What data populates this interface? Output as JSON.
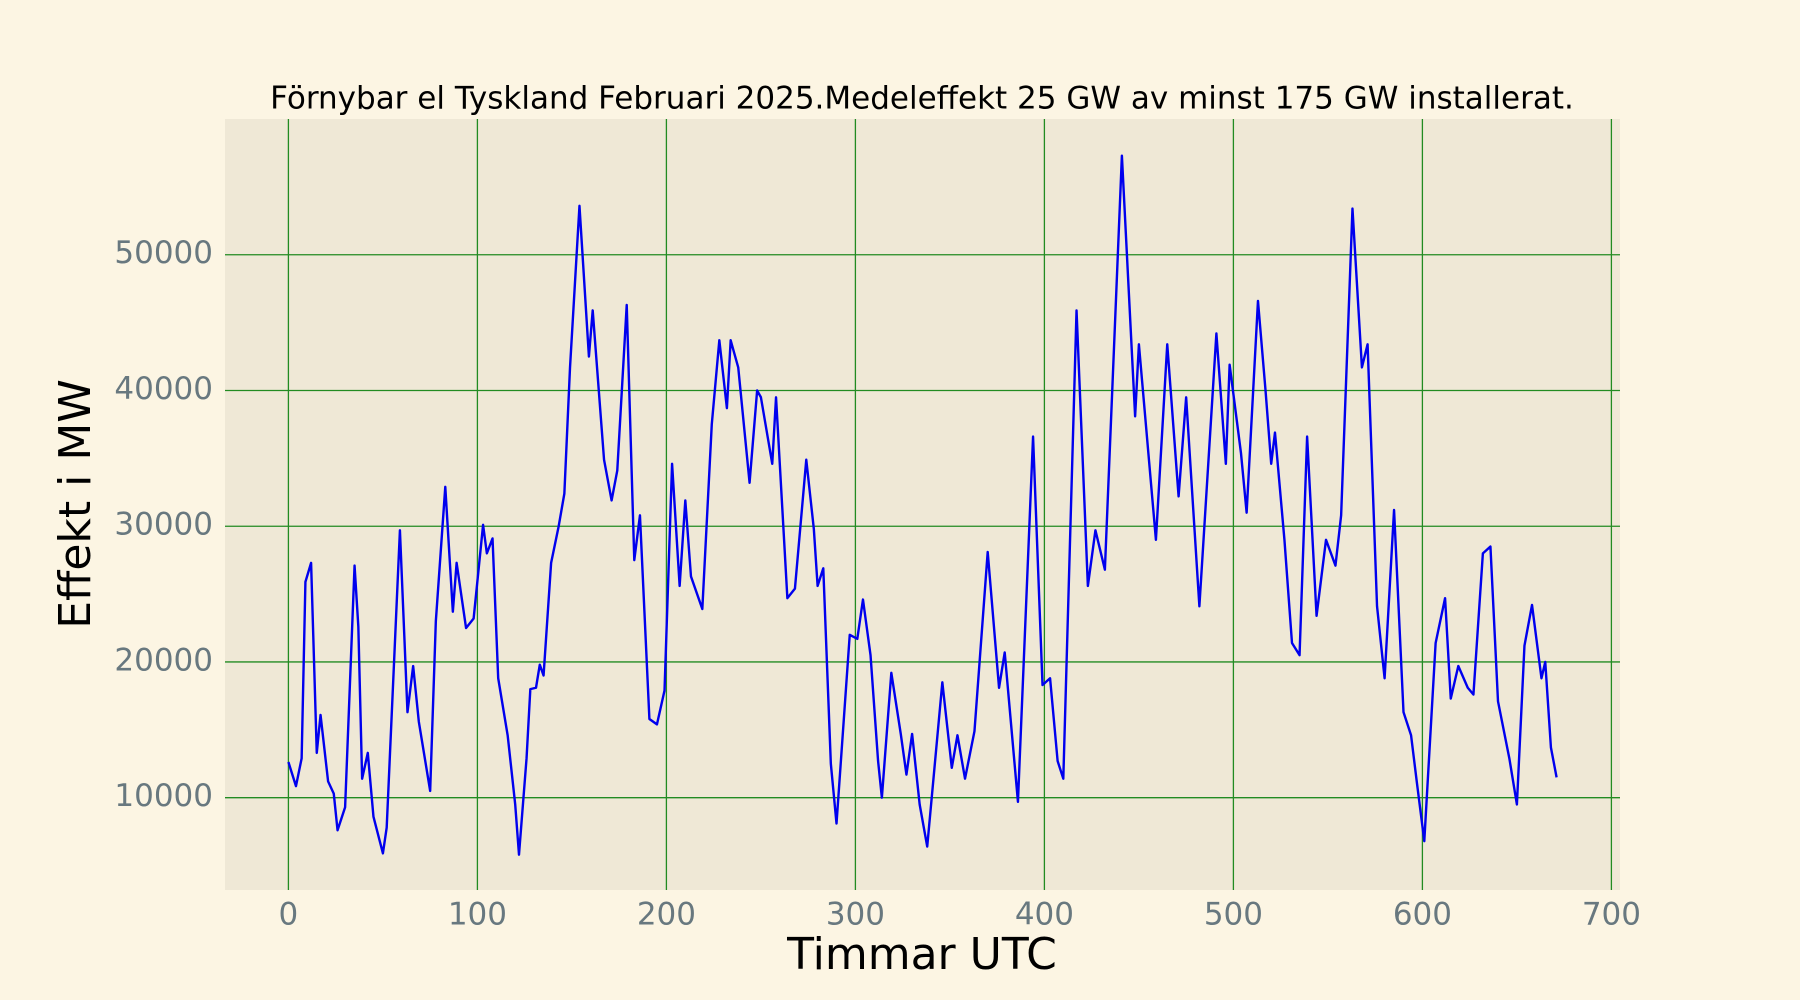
{
  "chart_data": {
    "type": "line",
    "title": "Förnybar el Tyskland Februari 2025.Medeleffekt 25 GW av minst 175 GW installerat.",
    "x_label": "Timmar UTC",
    "y_label": "Effekt i MW",
    "x": [
      0,
      4,
      7,
      9,
      12,
      15,
      17,
      21,
      24,
      26,
      30,
      35,
      37,
      39,
      42,
      45,
      50,
      52,
      59,
      63,
      66,
      69,
      75,
      78,
      83,
      87,
      89,
      94,
      98,
      103,
      105,
      108,
      111,
      116,
      120,
      122,
      126,
      128,
      131,
      133,
      135,
      139,
      143,
      146,
      149,
      154,
      159,
      161,
      167,
      171,
      174,
      179,
      183,
      186,
      191,
      195,
      199,
      203,
      207,
      210,
      213,
      219,
      224,
      228,
      232,
      234,
      238,
      244,
      248,
      250,
      256,
      258,
      264,
      268,
      274,
      278,
      280,
      283,
      287,
      290,
      297,
      301,
      304,
      308,
      312,
      314,
      319,
      324,
      327,
      330,
      334,
      338,
      346,
      351,
      354,
      358,
      363,
      370,
      376,
      379,
      386,
      394,
      399,
      403,
      407,
      410,
      417,
      423,
      427,
      432,
      441,
      448,
      450,
      459,
      465,
      471,
      475,
      482,
      491,
      496,
      498,
      504,
      507,
      513,
      517,
      520,
      522,
      527,
      531,
      535,
      539,
      544,
      549,
      554,
      557,
      563,
      568,
      571,
      576,
      580,
      585,
      590,
      594,
      597,
      601,
      607,
      612,
      615,
      619,
      624,
      627,
      632,
      636,
      640,
      646,
      650,
      654,
      658,
      663,
      665,
      668,
      671
    ],
    "series": [
      {
        "name": "Effekt",
        "color": "#0000ee",
        "values": [
          12630,
          10850,
          12900,
          25900,
          27300,
          13300,
          16100,
          11200,
          10300,
          7600,
          9300,
          27100,
          22600,
          11400,
          13300,
          8600,
          5900,
          7800,
          29700,
          16300,
          19700,
          15600,
          10500,
          23000,
          32900,
          23700,
          27300,
          22500,
          23200,
          30100,
          28000,
          29100,
          18800,
          14600,
          9500,
          5800,
          12900,
          18000,
          18100,
          19800,
          19000,
          27300,
          30000,
          32400,
          41700,
          53600,
          42500,
          45900,
          34900,
          31900,
          34100,
          46300,
          27500,
          30800,
          15800,
          15400,
          17900,
          34600,
          25600,
          31900,
          26300,
          23900,
          37500,
          43700,
          38700,
          43700,
          41700,
          33200,
          40000,
          39500,
          34600,
          39500,
          24700,
          25400,
          34900,
          29800,
          25600,
          26900,
          12500,
          8100,
          22000,
          21700,
          24600,
          20500,
          12700,
          10000,
          19200,
          14700,
          11700,
          14700,
          9500,
          6400,
          18500,
          12200,
          14600,
          11400,
          14900,
          28100,
          18100,
          20700,
          9700,
          36600,
          18300,
          18800,
          12700,
          11400,
          45900,
          25600,
          29700,
          26800,
          57300,
          38100,
          43400,
          29000,
          43400,
          32200,
          39500,
          24100,
          44200,
          34600,
          41900,
          35400,
          31000,
          46600,
          40000,
          34600,
          36900,
          29000,
          21400,
          20500,
          36600,
          23400,
          29000,
          27100,
          30800,
          53400,
          41700,
          43400,
          24100,
          18800,
          31200,
          16300,
          14600,
          11200,
          6800,
          21400,
          24700,
          17300,
          19700,
          18100,
          17600,
          28000,
          28500,
          17100,
          12900,
          9500,
          21200,
          24200,
          18800,
          20000,
          13700,
          11500
        ]
      }
    ],
    "xlim": [
      -33.55,
      704.55
    ],
    "ylim": [
      3200,
      60000
    ],
    "xticks": [
      0,
      100,
      200,
      300,
      400,
      500,
      600,
      700
    ],
    "yticks": [
      10000,
      20000,
      30000,
      40000,
      50000
    ],
    "grid": true,
    "grid_color": "#228b22"
  }
}
